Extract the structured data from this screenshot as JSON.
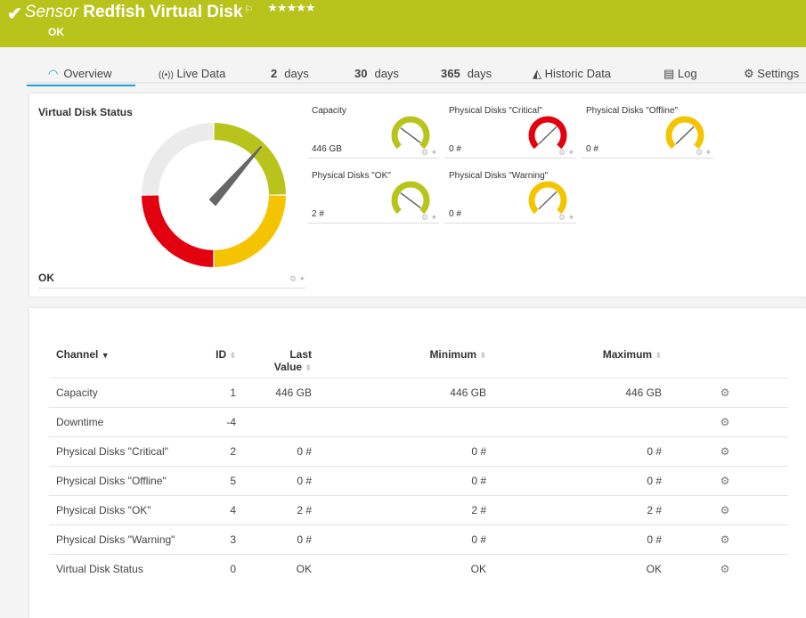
{
  "header": {
    "prefix": "Sensor",
    "title": "Redfish Virtual Disk",
    "flag_icon": "flag-icon",
    "stars": "★★★★★",
    "status": "OK",
    "color": "#b8c41c"
  },
  "tabs": [
    {
      "label": "Overview",
      "icon": "gauge-icon"
    },
    {
      "label": "Live Data",
      "icon": "broadcast-icon"
    },
    {
      "num": "2",
      "label": "days"
    },
    {
      "num": "30",
      "label": "days"
    },
    {
      "num": "365",
      "label": "days"
    },
    {
      "label": "Historic Data",
      "icon": "area-chart-icon"
    },
    {
      "label": "Log",
      "icon": "log-icon"
    },
    {
      "label": "Settings",
      "icon": "gear-icon"
    }
  ],
  "overview": {
    "title": "Virtual Disk Status",
    "value": "OK",
    "colors": {
      "ok": "#b8c41c",
      "warning": "#f5c400",
      "error": "#e3000f",
      "unknown": "#ebebeb"
    }
  },
  "gauges": [
    {
      "label": "Capacity",
      "value": "446 GB",
      "color": "#b8c41c",
      "level": 0.97
    },
    {
      "label": "Physical Disks \"Critical\"",
      "value": "0 #",
      "color": "#e3000f",
      "level": 0.67
    },
    {
      "label": "Physical Disks \"Offline\"",
      "value": "0 #",
      "color": "#f5c400",
      "level": 0.67
    },
    {
      "label": "Physical Disks \"OK\"",
      "value": "2 #",
      "color": "#b8c41c",
      "level": 0.97
    },
    {
      "label": "Physical Disks \"Warning\"",
      "value": "0 #",
      "color": "#f5c400",
      "level": 0.67
    }
  ],
  "table": {
    "headers": {
      "channel": "Channel",
      "id": "ID",
      "last1": "Last",
      "last2": "Value",
      "min": "Minimum",
      "max": "Maximum"
    },
    "rows": [
      {
        "channel": "Capacity",
        "id": "1",
        "last": "446 GB",
        "min": "446 GB",
        "max": "446 GB"
      },
      {
        "channel": "Downtime",
        "id": "-4",
        "last": "",
        "min": "",
        "max": ""
      },
      {
        "channel": "Physical Disks \"Critical\"",
        "id": "2",
        "last": "0 #",
        "min": "0 #",
        "max": "0 #"
      },
      {
        "channel": "Physical Disks \"Offline\"",
        "id": "5",
        "last": "0 #",
        "min": "0 #",
        "max": "0 #"
      },
      {
        "channel": "Physical Disks \"OK\"",
        "id": "4",
        "last": "2 #",
        "min": "2 #",
        "max": "2 #"
      },
      {
        "channel": "Physical Disks \"Warning\"",
        "id": "3",
        "last": "0 #",
        "min": "0 #",
        "max": "0 #"
      },
      {
        "channel": "Virtual Disk Status",
        "id": "0",
        "last": "OK",
        "min": "OK",
        "max": "OK"
      }
    ]
  }
}
